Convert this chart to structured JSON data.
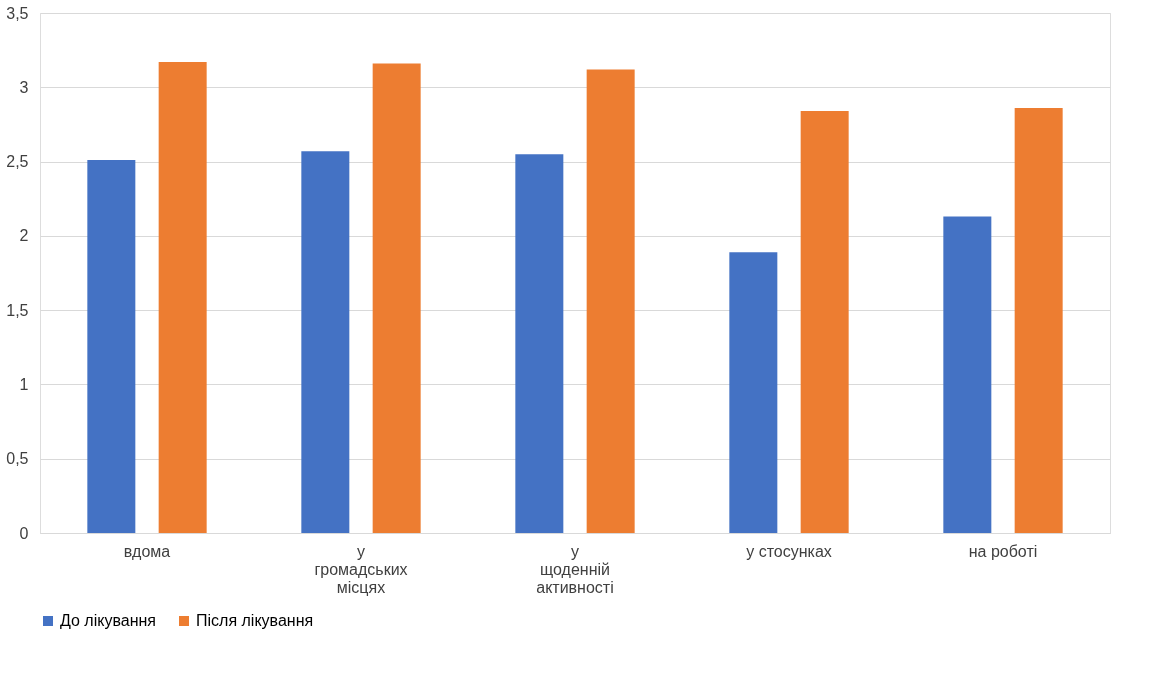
{
  "chart_data": {
    "type": "bar",
    "categories": [
      "вдома",
      "у громадських місцях",
      "у щоденній активності",
      "у стосунках",
      "на роботі"
    ],
    "series": [
      {
        "name": "До лікування",
        "color": "#4472c4",
        "values": [
          2.51,
          2.57,
          2.55,
          1.89,
          2.13
        ]
      },
      {
        "name": "Після лікування",
        "color": "#ed7d31",
        "values": [
          3.17,
          3.16,
          3.12,
          2.84,
          2.86
        ]
      }
    ],
    "ylim": [
      0,
      3.5
    ],
    "yticks": [
      0,
      {
        "value": 0.5,
        "label": "0,5"
      },
      1,
      {
        "value": 1.5,
        "label": "1,5"
      },
      2,
      {
        "value": 2.5,
        "label": "2,5"
      },
      3,
      {
        "value": 3.5,
        "label": "3,5"
      }
    ],
    "grid": "y",
    "legend": "bottom"
  }
}
